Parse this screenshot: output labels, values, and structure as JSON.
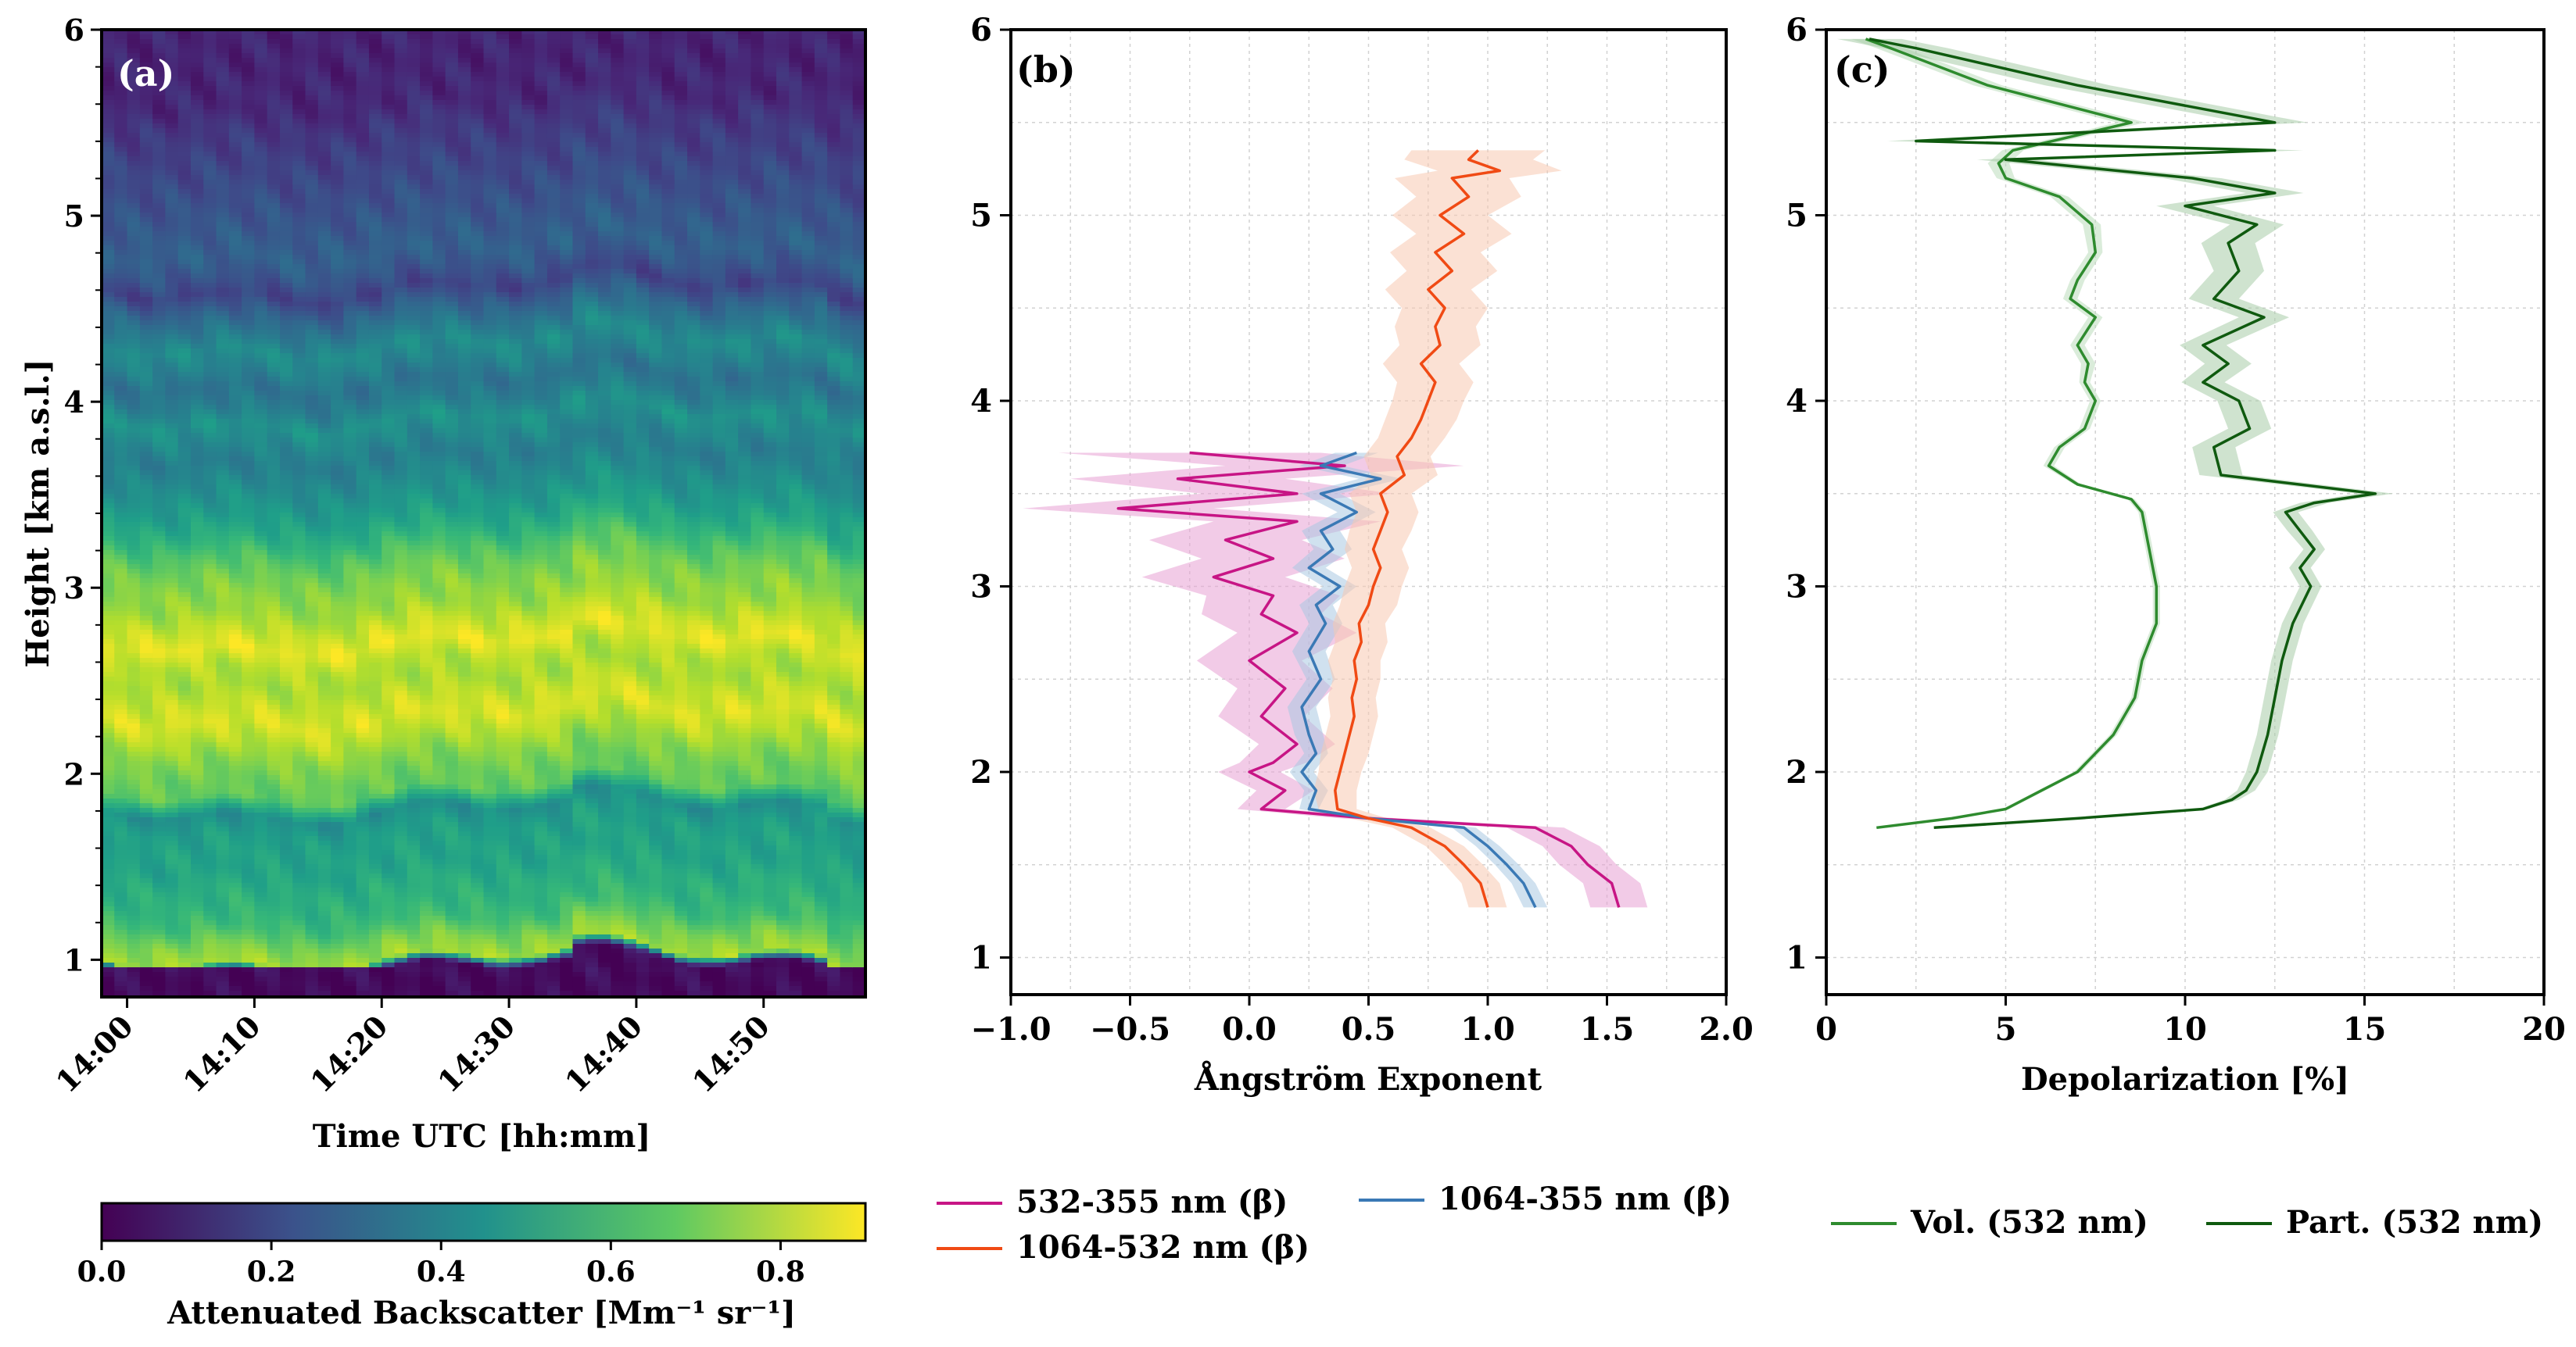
{
  "chart_data": [
    {
      "panel": "a",
      "type": "heatmap",
      "panel_label": "(a)",
      "xlabel": "Time UTC [hh:mm]",
      "ylabel": "Height [km a.s.l.]",
      "xticks": [
        "14:00",
        "14:10",
        "14:20",
        "14:30",
        "14:40",
        "14:50"
      ],
      "xtick_minutes": [
        0,
        10,
        20,
        30,
        40,
        50
      ],
      "xlim_minutes": [
        -2,
        58
      ],
      "yticks": [
        1,
        2,
        3,
        4,
        5,
        6
      ],
      "ylim": [
        0.8,
        6.0
      ],
      "colormap": "viridis",
      "colorbar": {
        "label": "Attenuated Backscatter [Mm⁻¹ sr⁻¹]",
        "ticks": [
          "0.0",
          "0.2",
          "0.4",
          "0.6",
          "0.8"
        ],
        "range": [
          0.0,
          0.9
        ]
      },
      "profile": {
        "heights": [
          0.8,
          0.9,
          0.95,
          1.0,
          1.1,
          1.2,
          1.3,
          1.4,
          1.5,
          1.6,
          1.7,
          1.8,
          1.9,
          2.0,
          2.1,
          2.2,
          2.3,
          2.4,
          2.5,
          2.6,
          2.7,
          2.8,
          2.9,
          3.0,
          3.1,
          3.2,
          3.3,
          3.4,
          3.5,
          3.6,
          3.7,
          3.8,
          3.9,
          4.0,
          4.1,
          4.2,
          4.3,
          4.4,
          4.5,
          4.6,
          4.7,
          4.8,
          4.9,
          5.0,
          5.1,
          5.2,
          5.3,
          5.4,
          5.5,
          5.6,
          5.7,
          5.8,
          5.9,
          6.0
        ],
        "values": [
          0.02,
          0.02,
          0.03,
          0.78,
          0.72,
          0.62,
          0.58,
          0.56,
          0.52,
          0.52,
          0.5,
          0.44,
          0.68,
          0.7,
          0.74,
          0.8,
          0.85,
          0.82,
          0.78,
          0.8,
          0.87,
          0.82,
          0.76,
          0.74,
          0.7,
          0.64,
          0.56,
          0.5,
          0.46,
          0.42,
          0.38,
          0.42,
          0.46,
          0.38,
          0.34,
          0.4,
          0.44,
          0.36,
          0.28,
          0.18,
          0.24,
          0.28,
          0.26,
          0.24,
          0.22,
          0.2,
          0.18,
          0.16,
          0.14,
          0.1,
          0.1,
          0.09,
          0.09,
          0.09
        ]
      }
    },
    {
      "panel": "b",
      "type": "line",
      "panel_label": "(b)",
      "xlabel": "Ångström Exponent",
      "xticks": [
        "−1.0",
        "−0.5",
        "0.0",
        "0.5",
        "1.0",
        "1.5",
        "2.0"
      ],
      "xlim": [
        -1.0,
        2.0
      ],
      "yticks": [
        1,
        2,
        3,
        4,
        5,
        6
      ],
      "ylim": [
        0.8,
        6.0
      ],
      "grid": true,
      "legend_placement": "below",
      "series": [
        {
          "name": "532-355 nm (β)",
          "color": "#c71585",
          "fill": "#e8a0d4",
          "y": [
            1.27,
            1.4,
            1.5,
            1.6,
            1.7,
            1.75,
            1.8,
            1.9,
            2.0,
            2.05,
            2.15,
            2.3,
            2.45,
            2.6,
            2.75,
            2.85,
            2.95,
            3.05,
            3.15,
            3.25,
            3.35,
            3.42,
            3.5,
            3.58,
            3.65,
            3.72
          ],
          "x": [
            1.55,
            1.52,
            1.42,
            1.35,
            1.2,
            0.5,
            0.05,
            0.15,
            0.0,
            0.1,
            0.2,
            0.05,
            0.15,
            0.0,
            0.2,
            0.05,
            0.1,
            -0.15,
            0.1,
            -0.1,
            0.2,
            -0.55,
            0.2,
            -0.3,
            0.4,
            -0.25
          ],
          "err": [
            0.12,
            0.12,
            0.12,
            0.12,
            0.12,
            0.12,
            0.1,
            0.12,
            0.13,
            0.14,
            0.16,
            0.18,
            0.2,
            0.22,
            0.25,
            0.25,
            0.28,
            0.3,
            0.3,
            0.32,
            0.35,
            0.4,
            0.4,
            0.45,
            0.5,
            0.55
          ]
        },
        {
          "name": "1064-355 nm (β)",
          "color": "#3a79b5",
          "fill": "#a9c8e2",
          "y": [
            1.27,
            1.4,
            1.5,
            1.6,
            1.7,
            1.75,
            1.8,
            1.9,
            2.0,
            2.1,
            2.2,
            2.35,
            2.5,
            2.65,
            2.8,
            2.9,
            3.0,
            3.1,
            3.2,
            3.3,
            3.4,
            3.5,
            3.58,
            3.65,
            3.72
          ],
          "x": [
            1.2,
            1.15,
            1.08,
            1.0,
            0.9,
            0.5,
            0.25,
            0.28,
            0.22,
            0.28,
            0.25,
            0.22,
            0.3,
            0.25,
            0.32,
            0.28,
            0.38,
            0.25,
            0.35,
            0.3,
            0.45,
            0.3,
            0.55,
            0.3,
            0.45
          ],
          "err": [
            0.05,
            0.05,
            0.05,
            0.05,
            0.05,
            0.05,
            0.04,
            0.05,
            0.05,
            0.05,
            0.06,
            0.06,
            0.06,
            0.07,
            0.07,
            0.07,
            0.07,
            0.07,
            0.08,
            0.08,
            0.08,
            0.08,
            0.09,
            0.09,
            0.09
          ]
        },
        {
          "name": "1064-532 nm (β)",
          "color": "#f04a14",
          "fill": "#f8c8b0",
          "y": [
            1.27,
            1.4,
            1.5,
            1.6,
            1.7,
            1.75,
            1.8,
            1.9,
            2.0,
            2.1,
            2.2,
            2.3,
            2.4,
            2.5,
            2.6,
            2.7,
            2.8,
            2.9,
            3.0,
            3.1,
            3.2,
            3.3,
            3.4,
            3.5,
            3.6,
            3.7,
            3.8,
            3.9,
            4.0,
            4.1,
            4.2,
            4.3,
            4.4,
            4.5,
            4.6,
            4.7,
            4.8,
            4.9,
            5.0,
            5.1,
            5.2,
            5.24,
            5.3,
            5.35
          ],
          "x": [
            1.0,
            0.97,
            0.9,
            0.82,
            0.68,
            0.5,
            0.37,
            0.36,
            0.38,
            0.4,
            0.42,
            0.44,
            0.43,
            0.45,
            0.44,
            0.47,
            0.46,
            0.5,
            0.52,
            0.55,
            0.52,
            0.55,
            0.58,
            0.55,
            0.65,
            0.62,
            0.68,
            0.72,
            0.75,
            0.78,
            0.72,
            0.8,
            0.78,
            0.82,
            0.75,
            0.85,
            0.78,
            0.9,
            0.8,
            0.92,
            0.85,
            1.05,
            0.92,
            0.96
          ],
          "err": [
            0.08,
            0.08,
            0.08,
            0.08,
            0.08,
            0.08,
            0.08,
            0.09,
            0.09,
            0.1,
            0.1,
            0.1,
            0.1,
            0.1,
            0.11,
            0.11,
            0.11,
            0.12,
            0.12,
            0.12,
            0.12,
            0.13,
            0.13,
            0.13,
            0.14,
            0.14,
            0.14,
            0.15,
            0.15,
            0.16,
            0.16,
            0.17,
            0.17,
            0.18,
            0.18,
            0.19,
            0.19,
            0.2,
            0.2,
            0.22,
            0.24,
            0.26,
            0.27,
            0.28
          ]
        }
      ]
    },
    {
      "panel": "c",
      "type": "line",
      "panel_label": "(c)",
      "xlabel": "Depolarization [%]",
      "xticks": [
        "0",
        "5",
        "10",
        "15",
        "20"
      ],
      "xlim": [
        0,
        20
      ],
      "yticks": [
        1,
        2,
        3,
        4,
        5,
        6
      ],
      "ylim": [
        0.8,
        6.0
      ],
      "grid": true,
      "legend_placement": "below",
      "series": [
        {
          "name": "Vol. (532 nm)",
          "color": "#2e8b2e",
          "fill": "#bcdcbc",
          "y": [
            1.7,
            1.75,
            1.8,
            1.9,
            2.0,
            2.2,
            2.4,
            2.6,
            2.8,
            3.0,
            3.2,
            3.4,
            3.47,
            3.55,
            3.65,
            3.75,
            3.85,
            4.0,
            4.1,
            4.2,
            4.3,
            4.45,
            4.55,
            4.65,
            4.8,
            4.95,
            5.1,
            5.2,
            5.28,
            5.35,
            5.5,
            5.7,
            5.9,
            5.95
          ],
          "x": [
            1.4,
            3.5,
            5.0,
            6.0,
            7.0,
            8.0,
            8.6,
            8.8,
            9.2,
            9.2,
            9.0,
            8.8,
            8.5,
            7.0,
            6.2,
            6.5,
            7.2,
            7.5,
            7.2,
            7.3,
            7.0,
            7.5,
            6.8,
            7.0,
            7.5,
            7.4,
            6.5,
            5.0,
            4.8,
            5.2,
            8.5,
            4.5,
            1.8,
            1.1
          ],
          "err": [
            0.1,
            0.1,
            0.1,
            0.1,
            0.1,
            0.1,
            0.1,
            0.1,
            0.1,
            0.1,
            0.1,
            0.1,
            0.1,
            0.1,
            0.15,
            0.15,
            0.15,
            0.15,
            0.15,
            0.2,
            0.2,
            0.2,
            0.2,
            0.2,
            0.2,
            0.25,
            0.25,
            0.25,
            0.3,
            0.3,
            0.4,
            0.4,
            0.4,
            0.4
          ]
        },
        {
          "name": "Part. (532 nm)",
          "color": "#0f5a0f",
          "fill": "#a8cca8",
          "y": [
            1.7,
            1.75,
            1.8,
            1.85,
            1.9,
            2.0,
            2.2,
            2.4,
            2.6,
            2.8,
            3.0,
            3.1,
            3.2,
            3.3,
            3.4,
            3.45,
            3.5,
            3.6,
            3.75,
            3.85,
            4.0,
            4.1,
            4.2,
            4.3,
            4.45,
            4.55,
            4.7,
            4.85,
            4.95,
            5.05,
            5.12,
            5.2,
            5.3,
            5.35,
            5.4,
            5.5,
            5.7,
            5.9,
            5.95
          ],
          "x": [
            3.0,
            7.0,
            10.5,
            11.3,
            11.7,
            12.0,
            12.3,
            12.5,
            12.7,
            13.0,
            13.5,
            13.2,
            13.6,
            13.2,
            12.8,
            13.6,
            15.3,
            11.0,
            10.8,
            11.8,
            11.5,
            10.5,
            11.2,
            10.5,
            12.2,
            10.8,
            11.5,
            11.2,
            12.0,
            10.0,
            12.5,
            10.2,
            5.0,
            12.5,
            2.5,
            12.5,
            7.0,
            2.5,
            1.2
          ],
          "err": [
            0.1,
            0.1,
            0.15,
            0.2,
            0.25,
            0.3,
            0.3,
            0.3,
            0.3,
            0.3,
            0.3,
            0.3,
            0.3,
            0.35,
            0.35,
            0.4,
            0.5,
            0.6,
            0.6,
            0.6,
            0.6,
            0.6,
            0.65,
            0.65,
            0.7,
            0.7,
            0.7,
            0.75,
            0.75,
            0.8,
            0.8,
            0.8,
            0.8,
            0.8,
            0.8,
            0.9,
            0.9,
            0.9,
            0.9
          ]
        }
      ]
    }
  ]
}
